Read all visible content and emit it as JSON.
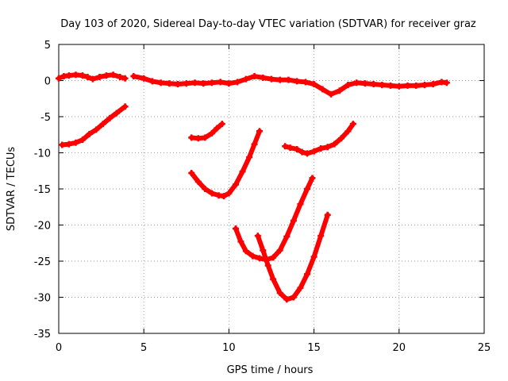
{
  "chart_data": {
    "type": "scatter",
    "title": "Day 103 of 2020, Sidereal Day-to-day VTEC variation (SDTVAR) for receiver graz",
    "xlabel": "GPS time / hours",
    "ylabel": "SDTVAR / TECUs",
    "xlim": [
      0,
      25
    ],
    "ylim": [
      -35,
      5
    ],
    "xticks": [
      0,
      5,
      10,
      15,
      20,
      25
    ],
    "yticks": [
      5,
      0,
      -5,
      -10,
      -15,
      -20,
      -25,
      -30,
      -35
    ],
    "grid": true,
    "grid_style": "dotted",
    "marker_color": "#ff0000",
    "series": [
      {
        "x": [
          0.0,
          0.3,
          0.6,
          1.0,
          1.4,
          1.7,
          2.0,
          2.4,
          2.8,
          3.2,
          3.6,
          3.9
        ],
        "y": [
          0.3,
          0.6,
          0.7,
          0.8,
          0.7,
          0.5,
          0.2,
          0.5,
          0.7,
          0.8,
          0.5,
          0.3
        ]
      },
      {
        "x": [
          4.4,
          5.0,
          5.5,
          6.0,
          6.5,
          7.0,
          7.5,
          8.0,
          8.5,
          9.0,
          9.5,
          10.0,
          10.5,
          11.0,
          11.5,
          12.0,
          12.5,
          13.0,
          13.5,
          14.0,
          14.5,
          15.0,
          15.5,
          16.0,
          16.5,
          17.0,
          17.5,
          18.0,
          18.5,
          19.0,
          19.5,
          20.0,
          20.5,
          21.0,
          21.5,
          22.0,
          22.5,
          22.8
        ],
        "y": [
          0.6,
          0.3,
          -0.1,
          -0.3,
          -0.4,
          -0.5,
          -0.4,
          -0.3,
          -0.4,
          -0.3,
          -0.2,
          -0.4,
          -0.2,
          0.2,
          0.6,
          0.4,
          0.2,
          0.1,
          0.1,
          -0.1,
          -0.2,
          -0.5,
          -1.2,
          -1.9,
          -1.4,
          -0.6,
          -0.3,
          -0.4,
          -0.5,
          -0.6,
          -0.7,
          -0.8,
          -0.7,
          -0.7,
          -0.6,
          -0.5,
          -0.2,
          -0.3
        ]
      },
      {
        "x": [
          0.2,
          0.6,
          1.0,
          1.4,
          1.8,
          2.2,
          2.6,
          3.0,
          3.4,
          3.9
        ],
        "y": [
          -8.9,
          -8.8,
          -8.6,
          -8.2,
          -7.4,
          -6.8,
          -6.0,
          -5.2,
          -4.5,
          -3.6
        ]
      },
      {
        "x": [
          7.8,
          8.2,
          8.6,
          9.0,
          9.3,
          9.6
        ],
        "y": [
          -7.9,
          -8.0,
          -7.9,
          -7.3,
          -6.6,
          -6.0
        ]
      },
      {
        "x": [
          7.8,
          8.2,
          8.6,
          9.0,
          9.4,
          9.7,
          10.0,
          10.4,
          10.8,
          11.2,
          11.5,
          11.8
        ],
        "y": [
          -12.8,
          -14.0,
          -15.0,
          -15.6,
          -15.9,
          -16.0,
          -15.6,
          -14.4,
          -12.6,
          -10.6,
          -8.8,
          -7.0
        ]
      },
      {
        "x": [
          13.3,
          13.6,
          14.0,
          14.3,
          14.6,
          15.0,
          15.4,
          15.8,
          16.2,
          16.6,
          17.0,
          17.3
        ],
        "y": [
          -9.1,
          -9.3,
          -9.5,
          -9.9,
          -10.1,
          -9.8,
          -9.4,
          -9.2,
          -8.8,
          -8.0,
          -7.0,
          -6.0
        ]
      },
      {
        "x": [
          10.4,
          10.7,
          11.0,
          11.4,
          11.8,
          12.2,
          12.6,
          13.0,
          13.4,
          13.8,
          14.2,
          14.6,
          14.9
        ],
        "y": [
          -20.5,
          -22.3,
          -23.6,
          -24.3,
          -24.6,
          -24.8,
          -24.5,
          -23.5,
          -21.6,
          -19.4,
          -17.1,
          -15.0,
          -13.5
        ]
      },
      {
        "x": [
          11.7,
          12.0,
          12.3,
          12.6,
          13.0,
          13.4,
          13.8,
          14.2,
          14.6,
          15.0,
          15.4,
          15.8
        ],
        "y": [
          -21.5,
          -23.5,
          -25.6,
          -27.5,
          -29.4,
          -30.3,
          -30.0,
          -28.7,
          -26.8,
          -24.4,
          -21.5,
          -18.6
        ]
      }
    ]
  }
}
